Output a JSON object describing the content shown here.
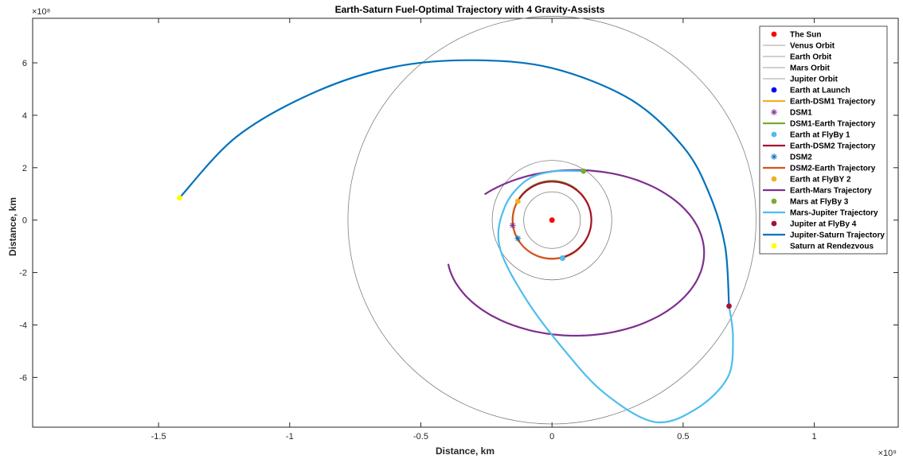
{
  "chart_data": {
    "type": "line",
    "title": "Earth-Saturn Fuel-Optimal Trajectory with 4 Gravity-Assists",
    "xlabel": "Distance, km",
    "ylabel": "Distance, km",
    "x_exponent_label": "×10⁹",
    "y_exponent_label": "×10⁸",
    "xlim": [
      -1.98,
      1.32
    ],
    "ylim": [
      -7.9,
      7.7
    ],
    "x_ticks": [
      -1.5,
      -1,
      -0.5,
      0,
      0.5,
      1
    ],
    "x_tick_labels": [
      "-1.5",
      "-1",
      "-0.5",
      "0",
      "0.5",
      "1"
    ],
    "y_ticks": [
      -6,
      -4,
      -2,
      0,
      2,
      4,
      6
    ],
    "y_tick_labels": [
      "-6",
      "-4",
      "-2",
      "0",
      "2",
      "4",
      "6"
    ],
    "grid": false,
    "legend_position": "top-right",
    "orbits": [
      {
        "name": "Venus Orbit",
        "radius_x": 0.108,
        "color": "#808080"
      },
      {
        "name": "Earth Orbit",
        "radius_x": 0.15,
        "color": "#808080"
      },
      {
        "name": "Mars Orbit",
        "radius_x": 0.228,
        "color": "#808080"
      },
      {
        "name": "Jupiter Orbit",
        "radius_x": 0.778,
        "color": "#808080"
      }
    ],
    "trajectories": [
      {
        "name": "Earth-DSM1 Trajectory",
        "color": "#EDB120",
        "type": "ellipse",
        "cx": 0.0,
        "cy": 0.0,
        "a": 0.15,
        "b": 1.5,
        "t_start": -1.36,
        "t_end": 0.9
      },
      {
        "name": "DSM1-Earth Trajectory",
        "color": "#77AC30",
        "type": "ellipse",
        "cx": 0.0,
        "cy": 0.0,
        "a": 0.15,
        "b": 1.5,
        "t_start": 0.9,
        "t_end": 3.7
      },
      {
        "name": "Earth-DSM2 Trajectory",
        "color": "#A2142F",
        "type": "ellipse",
        "cx": 0.0,
        "cy": 0.0,
        "a": 0.15,
        "b": 1.47,
        "t_start": -1.36,
        "t_end": 2.6
      },
      {
        "name": "DSM2-Earth Trajectory",
        "color": "#D95319",
        "type": "ellipse",
        "cx": 0.0,
        "cy": 0.0,
        "a": 0.15,
        "b": 1.47,
        "t_start": 2.6,
        "t_end": 4.92
      },
      {
        "name": "Earth-Mars Trajectory",
        "color": "#7E2F8E",
        "type": "ellipse",
        "cx": 0.09,
        "cy": -1.25,
        "a": 0.49,
        "b": 3.16,
        "t_start": -3.0,
        "t_end": 2.35
      },
      {
        "name": "Mars-Jupiter Trajectory",
        "color": "#4DBEEE",
        "type": "path",
        "points": [
          [
            0.12,
            1.87
          ],
          [
            0.0,
            1.85
          ],
          [
            -0.1,
            1.5
          ],
          [
            -0.18,
            0.5
          ],
          [
            -0.2,
            -1.0
          ],
          [
            -0.1,
            -3.0
          ],
          [
            0.05,
            -5.0
          ],
          [
            0.2,
            -6.6
          ],
          [
            0.39,
            -7.7
          ],
          [
            0.55,
            -7.2
          ],
          [
            0.67,
            -6.0
          ],
          [
            0.69,
            -4.5
          ],
          [
            0.675,
            -3.28
          ]
        ]
      },
      {
        "name": "Jupiter-Saturn Trajectory",
        "color": "#0072BD",
        "type": "path",
        "points": [
          [
            0.675,
            -3.28
          ],
          [
            0.66,
            -1.0
          ],
          [
            0.6,
            1.0
          ],
          [
            0.5,
            2.8
          ],
          [
            0.3,
            4.6
          ],
          [
            0.0,
            5.8
          ],
          [
            -0.3,
            6.1
          ],
          [
            -0.6,
            5.85
          ],
          [
            -0.9,
            4.9
          ],
          [
            -1.2,
            3.2
          ],
          [
            -1.42,
            0.85
          ]
        ]
      }
    ],
    "points": [
      {
        "name": "The Sun",
        "x": 0.0,
        "y": 0.0,
        "color": "#FF0000",
        "marker": "dot"
      },
      {
        "name": "Earth at Launch",
        "x": 0.04,
        "y": -1.45,
        "color": "#0000FF",
        "marker": "dot"
      },
      {
        "name": "DSM1",
        "x": -0.15,
        "y": -0.2,
        "color": "#7E2F8E",
        "marker": "star"
      },
      {
        "name": "Earth at FlyBy 1",
        "x": 0.04,
        "y": -1.45,
        "color": "#4DBEEE",
        "marker": "dot"
      },
      {
        "name": "DSM2",
        "x": -0.13,
        "y": -0.7,
        "color": "#0072BD",
        "marker": "star"
      },
      {
        "name": "Earth at FlyBY 2",
        "x": -0.13,
        "y": 0.72,
        "color": "#EDB120",
        "marker": "dot"
      },
      {
        "name": "Mars at FlyBy 3",
        "x": 0.12,
        "y": 1.87,
        "color": "#77AC30",
        "marker": "dot"
      },
      {
        "name": "Jupiter at FlyBy 4",
        "x": 0.675,
        "y": -3.28,
        "color": "#A2142F",
        "marker": "dot"
      },
      {
        "name": "Saturn at Rendezvous",
        "x": -1.42,
        "y": 0.85,
        "color": "#FFFF00",
        "marker": "dot"
      }
    ],
    "legend": [
      {
        "label": "The Sun",
        "kind": "marker",
        "marker": "dot",
        "color": "#FF0000"
      },
      {
        "label": "Venus Orbit",
        "kind": "line",
        "color": "#808080",
        "thin": true
      },
      {
        "label": "Earth Orbit",
        "kind": "line",
        "color": "#808080",
        "thin": true
      },
      {
        "label": "Mars Orbit",
        "kind": "line",
        "color": "#808080",
        "thin": true
      },
      {
        "label": "Jupiter Orbit",
        "kind": "line",
        "color": "#808080",
        "thin": true
      },
      {
        "label": "Earth at Launch",
        "kind": "marker",
        "marker": "dot",
        "color": "#0000FF"
      },
      {
        "label": "Earth-DSM1 Trajectory",
        "kind": "line",
        "color": "#EDB120"
      },
      {
        "label": "DSM1",
        "kind": "marker",
        "marker": "star",
        "color": "#7E2F8E"
      },
      {
        "label": "DSM1-Earth Trajectory",
        "kind": "line",
        "color": "#77AC30"
      },
      {
        "label": "Earth at FlyBy 1",
        "kind": "marker",
        "marker": "dot",
        "color": "#4DBEEE"
      },
      {
        "label": "Earth-DSM2 Trajectory",
        "kind": "line",
        "color": "#A2142F"
      },
      {
        "label": "DSM2",
        "kind": "marker",
        "marker": "star",
        "color": "#0072BD"
      },
      {
        "label": "DSM2-Earth Trajectory",
        "kind": "line",
        "color": "#D95319"
      },
      {
        "label": "Earth at FlyBY 2",
        "kind": "marker",
        "marker": "dot",
        "color": "#EDB120"
      },
      {
        "label": "Earth-Mars Trajectory",
        "kind": "line",
        "color": "#7E2F8E"
      },
      {
        "label": "Mars at FlyBy 3",
        "kind": "marker",
        "marker": "dot",
        "color": "#77AC30"
      },
      {
        "label": "Mars-Jupiter Trajectory",
        "kind": "line",
        "color": "#4DBEEE"
      },
      {
        "label": "Jupiter at FlyBy 4",
        "kind": "marker",
        "marker": "dot",
        "color": "#A2142F"
      },
      {
        "label": "Jupiter-Saturn Trajectory",
        "kind": "line",
        "color": "#0072BD"
      },
      {
        "label": "Saturn at Rendezvous",
        "kind": "marker",
        "marker": "dot",
        "color": "#FFFF00"
      }
    ]
  }
}
